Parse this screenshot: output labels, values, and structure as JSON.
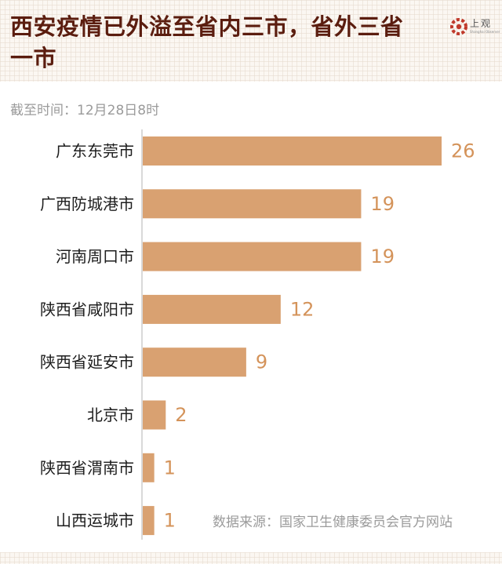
{
  "header": {
    "title": "西安疫情已外溢至省内三市，省外三省一市",
    "logo": {
      "name": "上观",
      "subtitle": "Shanghai Observer"
    }
  },
  "subtitle": "截至时间：12月28日8时",
  "source": "数据来源：国家卫生健康委员会官方网站",
  "colors": {
    "bar": "#d9a171",
    "value_label": "#d4935a",
    "title": "#5b1d0f",
    "axis": "#b3b3b3"
  },
  "chart_data": {
    "type": "bar",
    "orientation": "horizontal",
    "title": "西安疫情已外溢至省内三市，省外三省一市",
    "categories": [
      "广东东莞市",
      "广西防城港市",
      "河南周口市",
      "陕西省咸阳市",
      "陕西省延安市",
      "北京市",
      "陕西省渭南市",
      "山西运城市"
    ],
    "values": [
      26,
      19,
      19,
      12,
      9,
      2,
      1,
      1
    ],
    "xlim": [
      0,
      26
    ],
    "grid": false,
    "legend": "none"
  }
}
